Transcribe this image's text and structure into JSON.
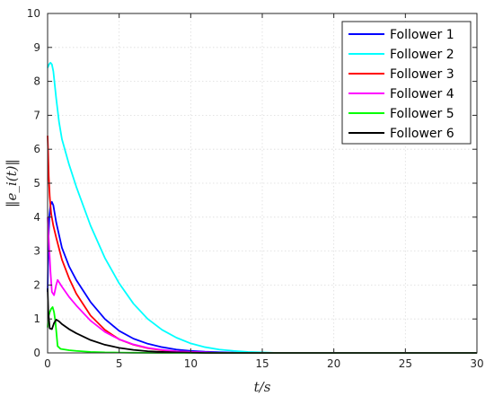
{
  "chart_data": {
    "type": "line",
    "xlabel": "t/s",
    "ylabel": "‖e_i(t)‖",
    "xlim": [
      0,
      30
    ],
    "ylim": [
      0,
      10
    ],
    "xticks": [
      0,
      5,
      10,
      15,
      20,
      25,
      30
    ],
    "yticks": [
      0,
      1,
      2,
      3,
      4,
      5,
      6,
      7,
      8,
      9,
      10
    ],
    "grid": true,
    "legend_position": "top-right",
    "series": [
      {
        "name": "Follower 1",
        "color": "#0000ff",
        "x": [
          0,
          0.05,
          0.12,
          0.2,
          0.3,
          0.4,
          0.6,
          1.0,
          1.5,
          2,
          3,
          4,
          5,
          6,
          7,
          8,
          9,
          10,
          11,
          12,
          13,
          14,
          15,
          30
        ],
        "y": [
          1.8,
          3.2,
          4.0,
          4.35,
          4.45,
          4.35,
          3.85,
          3.1,
          2.55,
          2.15,
          1.5,
          1.0,
          0.65,
          0.42,
          0.27,
          0.17,
          0.1,
          0.06,
          0.035,
          0.02,
          0.01,
          0.005,
          0.0,
          0.0
        ]
      },
      {
        "name": "Follower 2",
        "color": "#00ffff",
        "x": [
          0,
          0.1,
          0.2,
          0.3,
          0.4,
          0.5,
          0.6,
          0.8,
          1.0,
          1.5,
          2,
          3,
          4,
          5,
          6,
          7,
          8,
          9,
          10,
          11,
          12,
          13,
          14,
          15,
          16,
          30
        ],
        "y": [
          8.4,
          8.5,
          8.55,
          8.5,
          8.3,
          7.9,
          7.5,
          6.8,
          6.3,
          5.55,
          4.9,
          3.75,
          2.8,
          2.05,
          1.45,
          1.0,
          0.68,
          0.45,
          0.28,
          0.17,
          0.1,
          0.06,
          0.03,
          0.015,
          0.0,
          0.0
        ]
      },
      {
        "name": "Follower 3",
        "color": "#ff0000",
        "x": [
          0,
          0.03,
          0.08,
          0.15,
          0.25,
          0.4,
          0.6,
          1,
          1.5,
          2,
          3,
          4,
          5,
          6,
          7,
          8,
          9,
          10,
          11,
          12,
          30
        ],
        "y": [
          6.4,
          6.0,
          5.2,
          4.6,
          4.1,
          3.75,
          3.4,
          2.75,
          2.2,
          1.75,
          1.1,
          0.68,
          0.4,
          0.24,
          0.14,
          0.08,
          0.045,
          0.025,
          0.01,
          0.0,
          0.0
        ]
      },
      {
        "name": "Follower 4",
        "color": "#ff00ff",
        "x": [
          0,
          0.1,
          0.2,
          0.3,
          0.45,
          0.6,
          0.7,
          0.85,
          1.0,
          1.5,
          2,
          3,
          4,
          5,
          6,
          7,
          8,
          9,
          10,
          11,
          12,
          30
        ],
        "y": [
          4.0,
          3.2,
          2.4,
          1.8,
          1.7,
          2.0,
          2.15,
          2.05,
          1.95,
          1.65,
          1.4,
          0.95,
          0.62,
          0.4,
          0.25,
          0.15,
          0.09,
          0.05,
          0.03,
          0.015,
          0.0,
          0.0
        ]
      },
      {
        "name": "Follower 5",
        "color": "#00ff00",
        "x": [
          0,
          0.05,
          0.15,
          0.25,
          0.35,
          0.45,
          0.55,
          0.7,
          0.9,
          1.5,
          2,
          3,
          4,
          5,
          6,
          8,
          30
        ],
        "y": [
          0.75,
          1.05,
          1.2,
          1.3,
          1.35,
          1.2,
          0.9,
          0.2,
          0.12,
          0.08,
          0.06,
          0.03,
          0.015,
          0.01,
          0.005,
          0.0,
          0.0
        ]
      },
      {
        "name": "Follower 6",
        "color": "#000000",
        "x": [
          0,
          0.05,
          0.15,
          0.3,
          0.45,
          0.6,
          0.8,
          1.0,
          1.5,
          2,
          3,
          4,
          5,
          6,
          7,
          8,
          9,
          10,
          11,
          30
        ],
        "y": [
          1.9,
          1.2,
          0.72,
          0.7,
          0.88,
          0.98,
          0.93,
          0.85,
          0.7,
          0.58,
          0.38,
          0.24,
          0.15,
          0.09,
          0.05,
          0.03,
          0.015,
          0.008,
          0.0,
          0.0
        ]
      }
    ]
  }
}
